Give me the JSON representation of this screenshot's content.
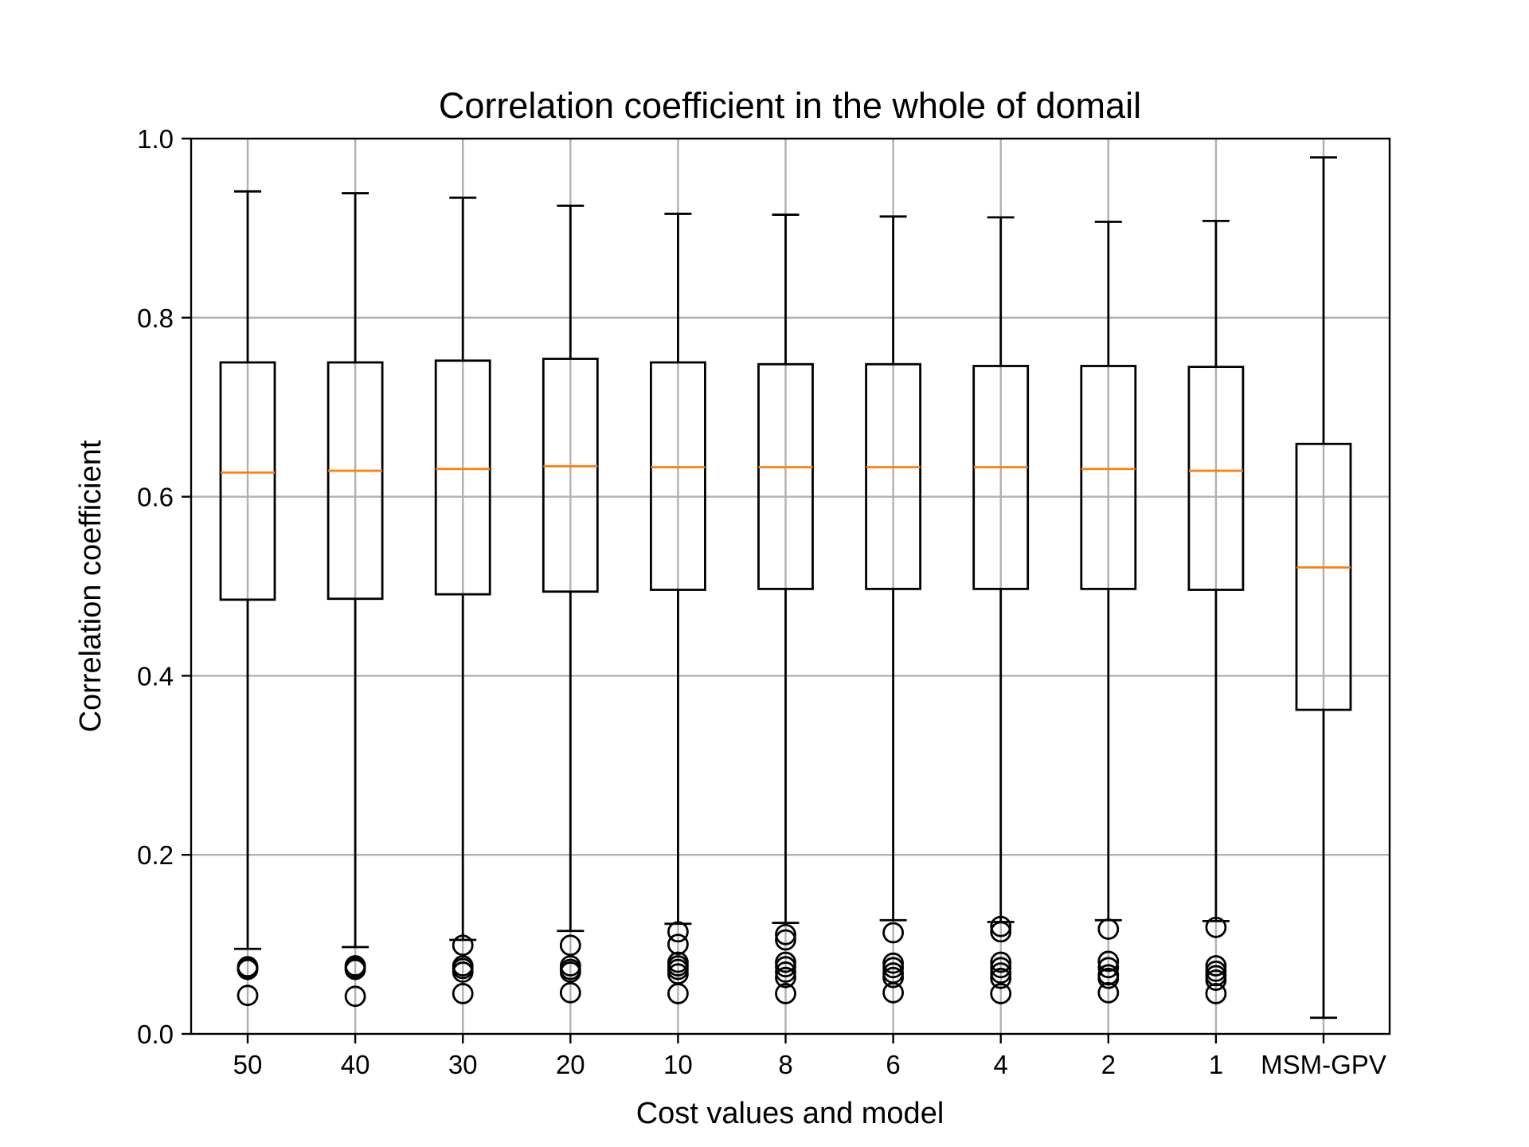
{
  "chart_data": {
    "type": "box",
    "title": "Correlation coefficient in the whole of domail",
    "xlabel": "Cost values and model",
    "ylabel": "Correlation coefficient",
    "ylim": [
      0.0,
      1.0
    ],
    "yticks": [
      "0.0",
      "0.2",
      "0.4",
      "0.6",
      "0.8",
      "1.0"
    ],
    "grid": true,
    "categories": [
      "50",
      "40",
      "30",
      "20",
      "10",
      "8",
      "6",
      "4",
      "2",
      "1",
      "MSM-GPV"
    ],
    "boxes": [
      {
        "label": "50",
        "whisker_low": 0.095,
        "q1": 0.485,
        "median": 0.627,
        "q3": 0.75,
        "whisker_high": 0.941,
        "fliers": [
          0.075,
          0.073,
          0.072,
          0.043
        ]
      },
      {
        "label": "40",
        "whisker_low": 0.097,
        "q1": 0.486,
        "median": 0.629,
        "q3": 0.75,
        "whisker_high": 0.939,
        "fliers": [
          0.076,
          0.074,
          0.072,
          0.042
        ]
      },
      {
        "label": "30",
        "whisker_low": 0.105,
        "q1": 0.491,
        "median": 0.631,
        "q3": 0.752,
        "whisker_high": 0.934,
        "fliers": [
          0.099,
          0.076,
          0.073,
          0.069,
          0.045
        ]
      },
      {
        "label": "20",
        "whisker_low": 0.115,
        "q1": 0.494,
        "median": 0.634,
        "q3": 0.754,
        "whisker_high": 0.925,
        "fliers": [
          0.099,
          0.076,
          0.072,
          0.069,
          0.046
        ]
      },
      {
        "label": "10",
        "whisker_low": 0.123,
        "q1": 0.496,
        "median": 0.633,
        "q3": 0.75,
        "whisker_high": 0.916,
        "fliers": [
          0.114,
          0.1,
          0.08,
          0.076,
          0.072,
          0.067,
          0.045
        ]
      },
      {
        "label": "8",
        "whisker_low": 0.124,
        "q1": 0.497,
        "median": 0.633,
        "q3": 0.748,
        "whisker_high": 0.915,
        "fliers": [
          0.111,
          0.105,
          0.08,
          0.075,
          0.069,
          0.063,
          0.045
        ]
      },
      {
        "label": "6",
        "whisker_low": 0.127,
        "q1": 0.497,
        "median": 0.633,
        "q3": 0.748,
        "whisker_high": 0.913,
        "fliers": [
          0.113,
          0.079,
          0.074,
          0.068,
          0.063,
          0.046
        ]
      },
      {
        "label": "4",
        "whisker_low": 0.125,
        "q1": 0.497,
        "median": 0.633,
        "q3": 0.746,
        "whisker_high": 0.912,
        "fliers": [
          0.12,
          0.114,
          0.08,
          0.074,
          0.068,
          0.062,
          0.045
        ]
      },
      {
        "label": "2",
        "whisker_low": 0.127,
        "q1": 0.497,
        "median": 0.631,
        "q3": 0.746,
        "whisker_high": 0.907,
        "fliers": [
          0.117,
          0.081,
          0.074,
          0.066,
          0.062,
          0.046
        ]
      },
      {
        "label": "1",
        "whisker_low": 0.126,
        "q1": 0.496,
        "median": 0.629,
        "q3": 0.745,
        "whisker_high": 0.908,
        "fliers": [
          0.119,
          0.076,
          0.07,
          0.065,
          0.06,
          0.045
        ]
      },
      {
        "label": "MSM-GPV",
        "whisker_low": 0.018,
        "q1": 0.362,
        "median": 0.521,
        "q3": 0.659,
        "whisker_high": 0.979,
        "fliers": []
      }
    ],
    "colors": {
      "box": "#000000",
      "median": "#ff7f0e",
      "grid": "#b0b0b0"
    }
  }
}
